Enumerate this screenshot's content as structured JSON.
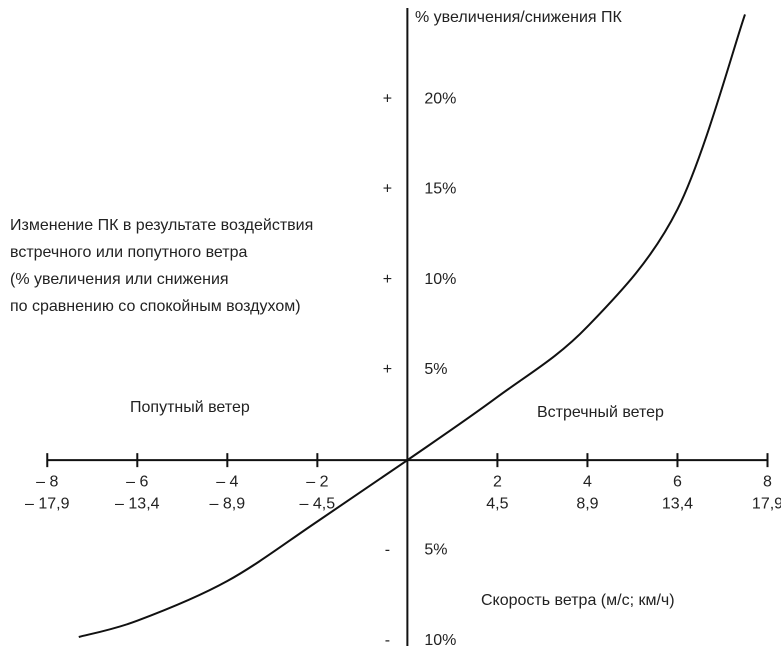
{
  "chart_data": {
    "type": "line",
    "title": "% увеличения/снижения ПК",
    "annotation_lines": [
      "Изменение ПК в результате воздействия",
      "встречного или попутного ветра",
      "(% увеличения или снижения",
      "по сравнению со спокойным воздухом)"
    ],
    "left_label": "Попутный ветер",
    "right_label": "Встречный ветер",
    "xlabel": "Скорость ветра (м/с; км/ч)",
    "x": [
      -7.3,
      -6,
      -4,
      -2,
      0,
      2,
      4,
      6,
      7.5
    ],
    "series": [
      {
        "color": "#111111",
        "values": [
          -9.8,
          -8.9,
          -6.7,
          -3.4,
          0,
          3.5,
          7.4,
          13.9,
          24.7
        ]
      }
    ],
    "xlim": [
      -9.05,
      8.3
    ],
    "ylim": [
      -10.3,
      25.5
    ],
    "xticks": [
      {
        "value": -8,
        "label": "– 8"
      },
      {
        "value": -6,
        "label": "– 6"
      },
      {
        "value": -4,
        "label": "– 4"
      },
      {
        "value": -2,
        "label": "– 2"
      },
      2,
      4,
      6,
      8
    ],
    "x_tick_labels_kmh": [
      "– 17,9",
      "– 13,4",
      "– 8,9",
      "– 4,5",
      "4,5",
      "8,9",
      "13,4",
      "17,9"
    ],
    "yticks": [
      {
        "value": 20,
        "label": "20%"
      },
      {
        "value": 15,
        "label": "15%"
      },
      {
        "value": 10,
        "label": "10%"
      },
      {
        "value": 5,
        "label": "5%"
      },
      {
        "value": -5,
        "label": "5%"
      },
      {
        "value": -10,
        "label": "10%"
      }
    ],
    "ytick_signs": [
      "+",
      "+",
      "+",
      "+",
      "-",
      "-"
    ],
    "grid": false
  }
}
